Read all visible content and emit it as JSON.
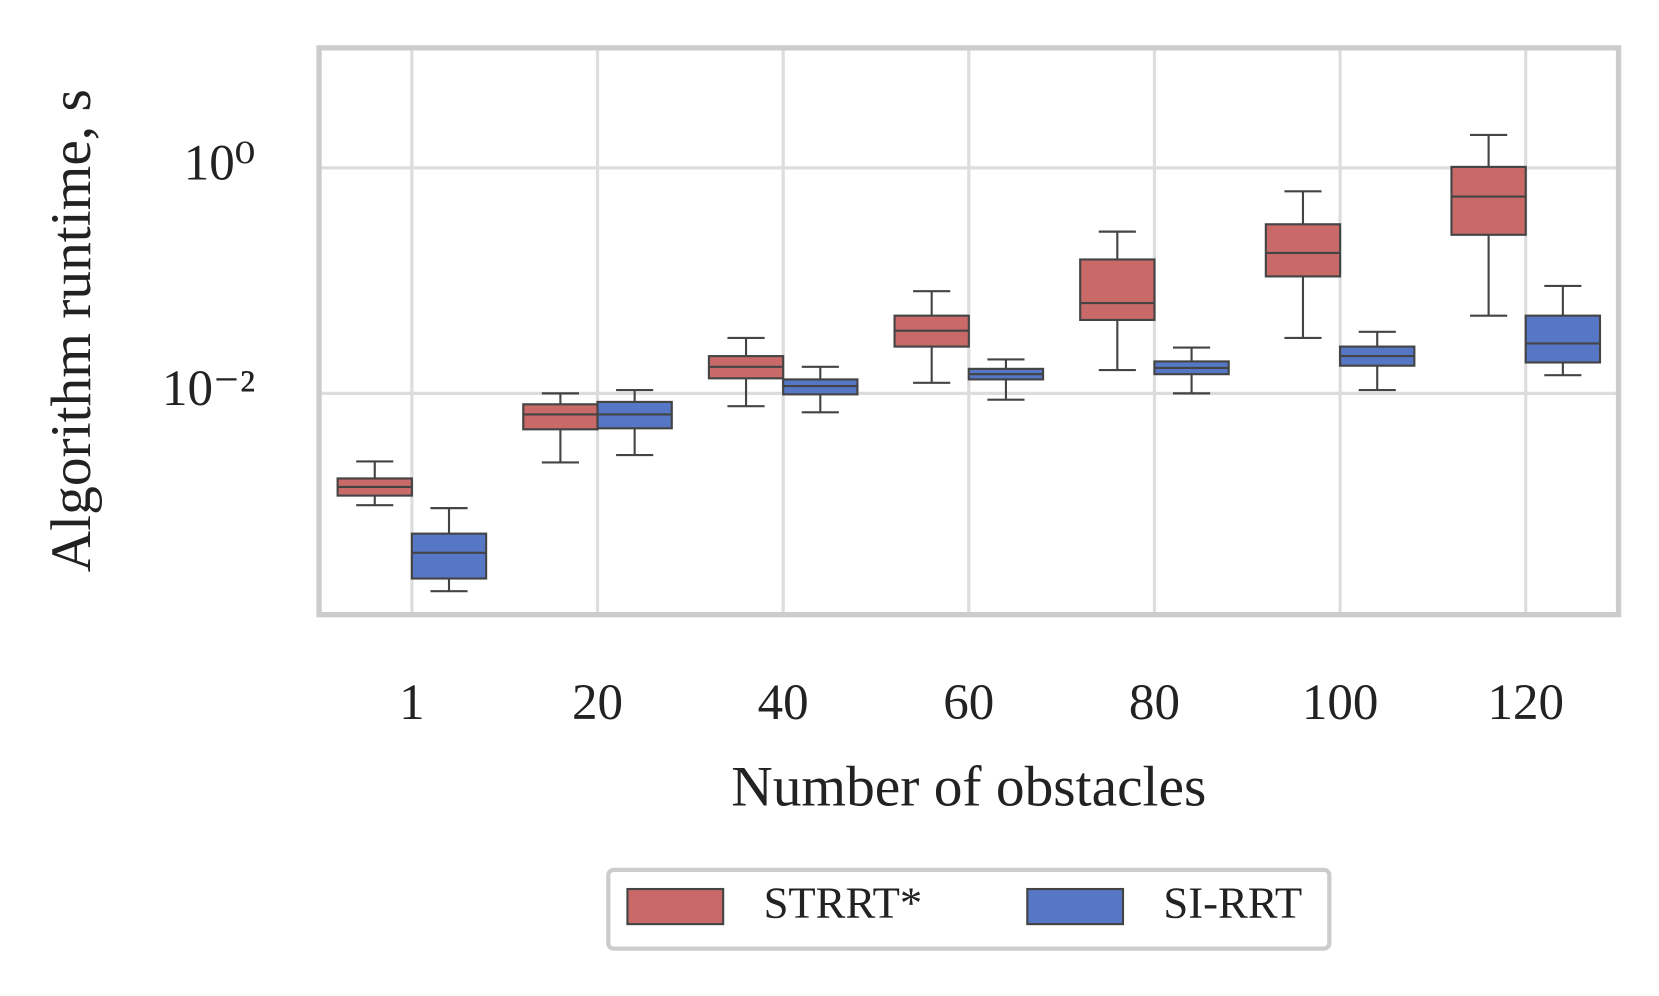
{
  "chart_data": {
    "type": "box",
    "ylabel": "Algorithm runtime, s",
    "xlabel": "Number of obstacles",
    "categories": [
      "1",
      "20",
      "40",
      "60",
      "80",
      "100",
      "120"
    ],
    "ylim": [
      0.000109,
      11.6
    ],
    "log_y": true,
    "grid": true,
    "yticks": [
      {
        "value": 1,
        "label": "10⁰"
      },
      {
        "value": 0.01,
        "label": "10⁻²"
      }
    ],
    "legend": "bottom",
    "series": [
      {
        "name": "STRRT*",
        "color": "#c96a69",
        "low": [
          0.00102,
          0.00244,
          0.0077,
          0.0124,
          0.0161,
          0.031,
          0.0489
        ],
        "q1": [
          0.00124,
          0.0048,
          0.0136,
          0.026,
          0.0448,
          0.109,
          0.255
        ],
        "median": [
          0.00148,
          0.0065,
          0.0172,
          0.036,
          0.0633,
          0.176,
          0.556
        ],
        "q3": [
          0.00176,
          0.008,
          0.0214,
          0.0489,
          0.154,
          0.316,
          1.02
        ],
        "high": [
          0.00249,
          0.01,
          0.031,
          0.0805,
          0.272,
          0.62,
          1.96
        ]
      },
      {
        "name": "SI-RRT",
        "color": "#5577c5",
        "low": [
          0.000176,
          0.00284,
          0.0068,
          0.0088,
          0.01,
          0.0107,
          0.0145
        ],
        "q1": [
          0.000228,
          0.0049,
          0.0098,
          0.0133,
          0.0148,
          0.0176,
          0.0188
        ],
        "median": [
          0.000385,
          0.0065,
          0.0116,
          0.0148,
          0.0168,
          0.0214,
          0.0277
        ],
        "q3": [
          0.00057,
          0.0084,
          0.0133,
          0.0165,
          0.0192,
          0.026,
          0.0489
        ],
        "high": [
          0.00096,
          0.0107,
          0.0172,
          0.02,
          0.0255,
          0.0352,
          0.0897
        ]
      }
    ]
  }
}
